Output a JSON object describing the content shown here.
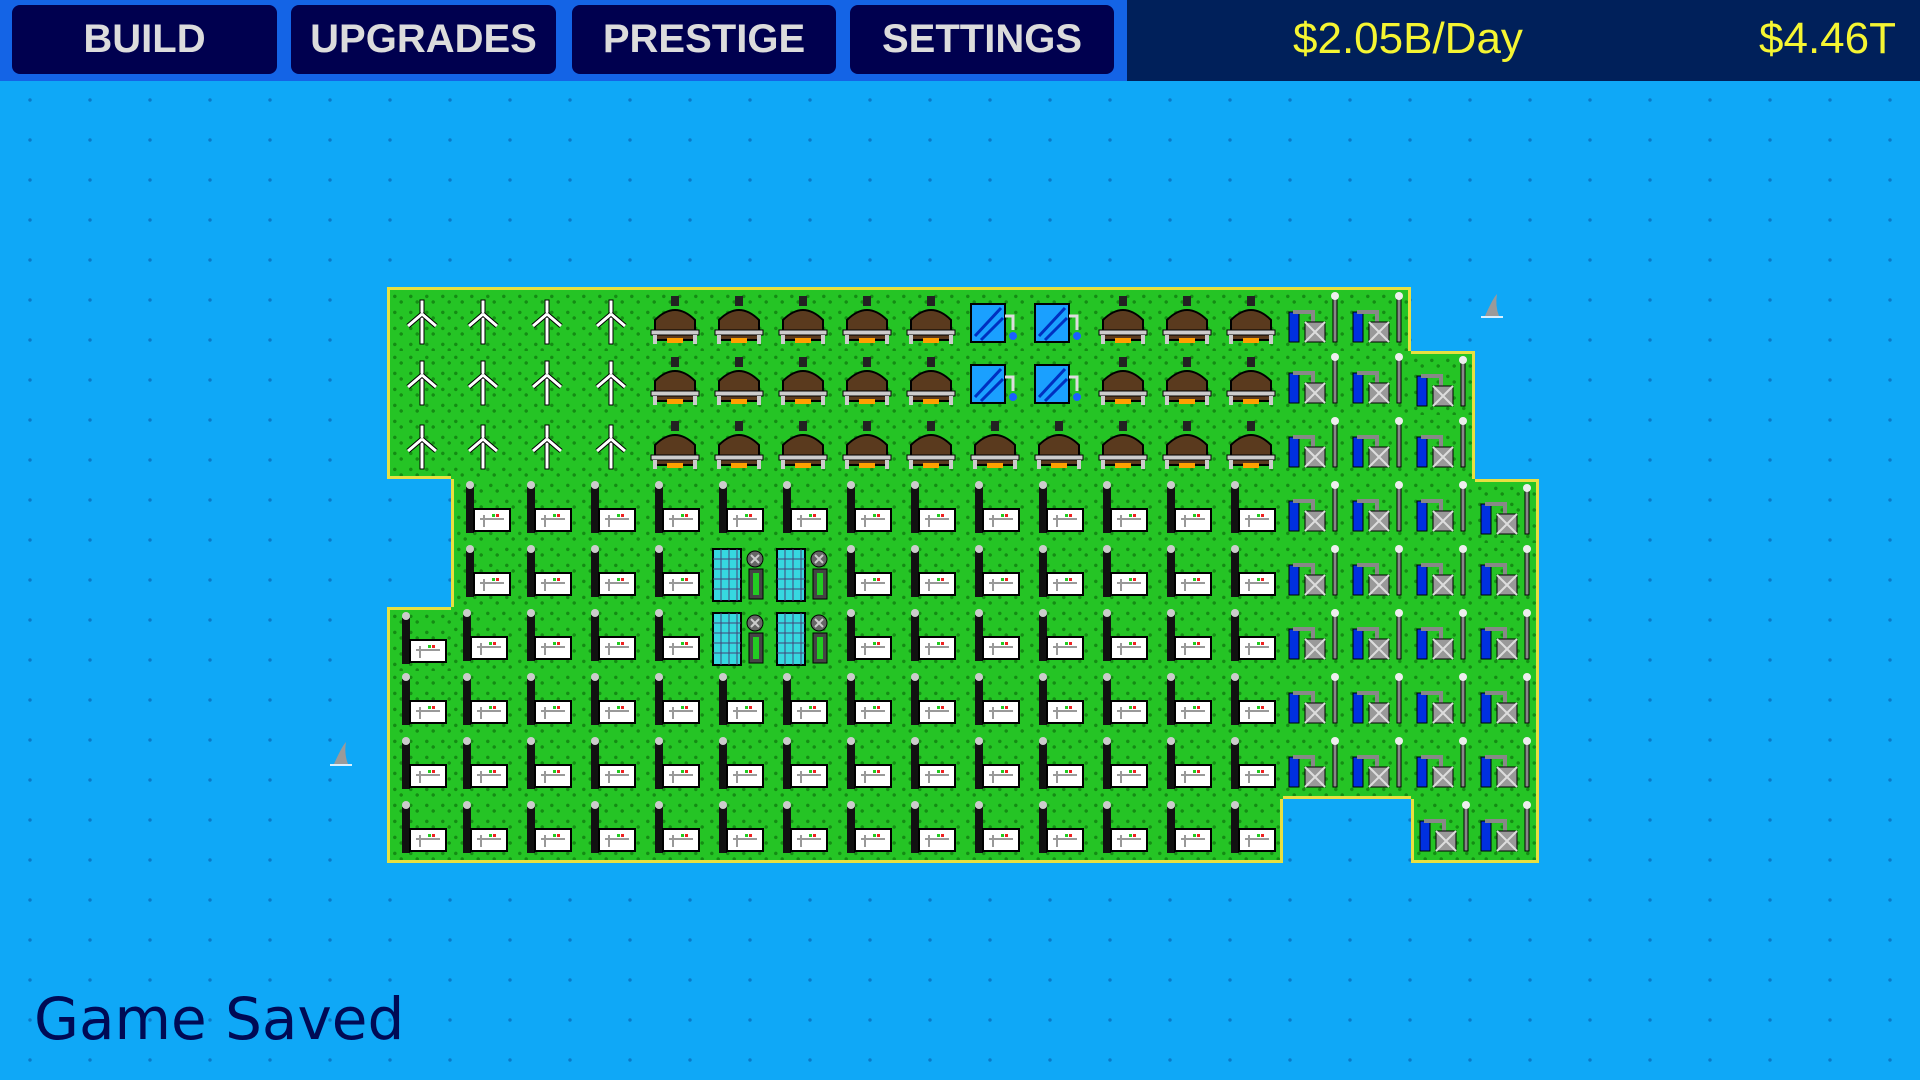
{
  "nav": {
    "build_label": "BUILD",
    "upgrades_label": "UPGRADES",
    "prestige_label": "PRESTIGE",
    "settings_label": "SETTINGS"
  },
  "money": {
    "rate": "$2.05B/Day",
    "total": "$4.46T"
  },
  "status": "Game Saved",
  "colors": {
    "water": "#0fa8f7",
    "grass": "#25c425",
    "shore": "#e8e040",
    "money_text": "#f5f532",
    "nav_button": "#00004f"
  },
  "map": {
    "legend": {
      "W": "wind-turbine",
      "C": "coal-plant",
      "S": "hydro-tank",
      "G": "gas-pump",
      "F": "factory",
      "N": "solar-reactor",
      ".": "water"
    },
    "rows": [
      "WWWWCCCCCSSCCCGG..",
      "WWWWCCCCCSSCCCGGG.",
      "WWWWCCCCCCCCCCGGG.",
      ".FFFFFFFFFFFFFGGGG",
      ".FFFFNNFFFFFFFGGGG",
      "FFFFFNNFFFFFFFGGGG",
      "FFFFFFFFFFFFFFGGGG",
      "FFFFFFFFFFFFFFGGGG",
      "FFFFFFFFFFFFFF..GG"
    ]
  },
  "sharks": [
    "shark-fin",
    "shark-fin"
  ]
}
